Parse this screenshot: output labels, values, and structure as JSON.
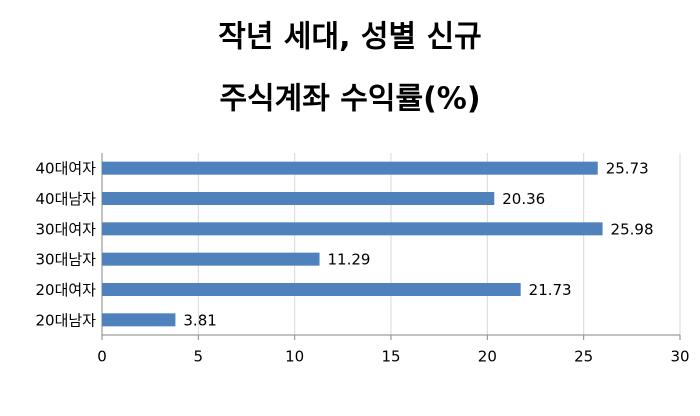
{
  "chart_data": {
    "type": "hbar",
    "title": [
      "작년 세대, 성별 신규",
      "주식계좌 수익률(%)"
    ],
    "categories": [
      "40대여자",
      "40대남자",
      "30대여자",
      "30대남자",
      "20대여자",
      "20대남자"
    ],
    "values": [
      25.73,
      20.36,
      25.98,
      11.29,
      21.73,
      3.81
    ],
    "color": "#4f81bd",
    "xlim": [
      0,
      30
    ],
    "xticks": [
      0,
      5,
      10,
      15,
      20,
      25,
      30
    ],
    "grid": true
  }
}
